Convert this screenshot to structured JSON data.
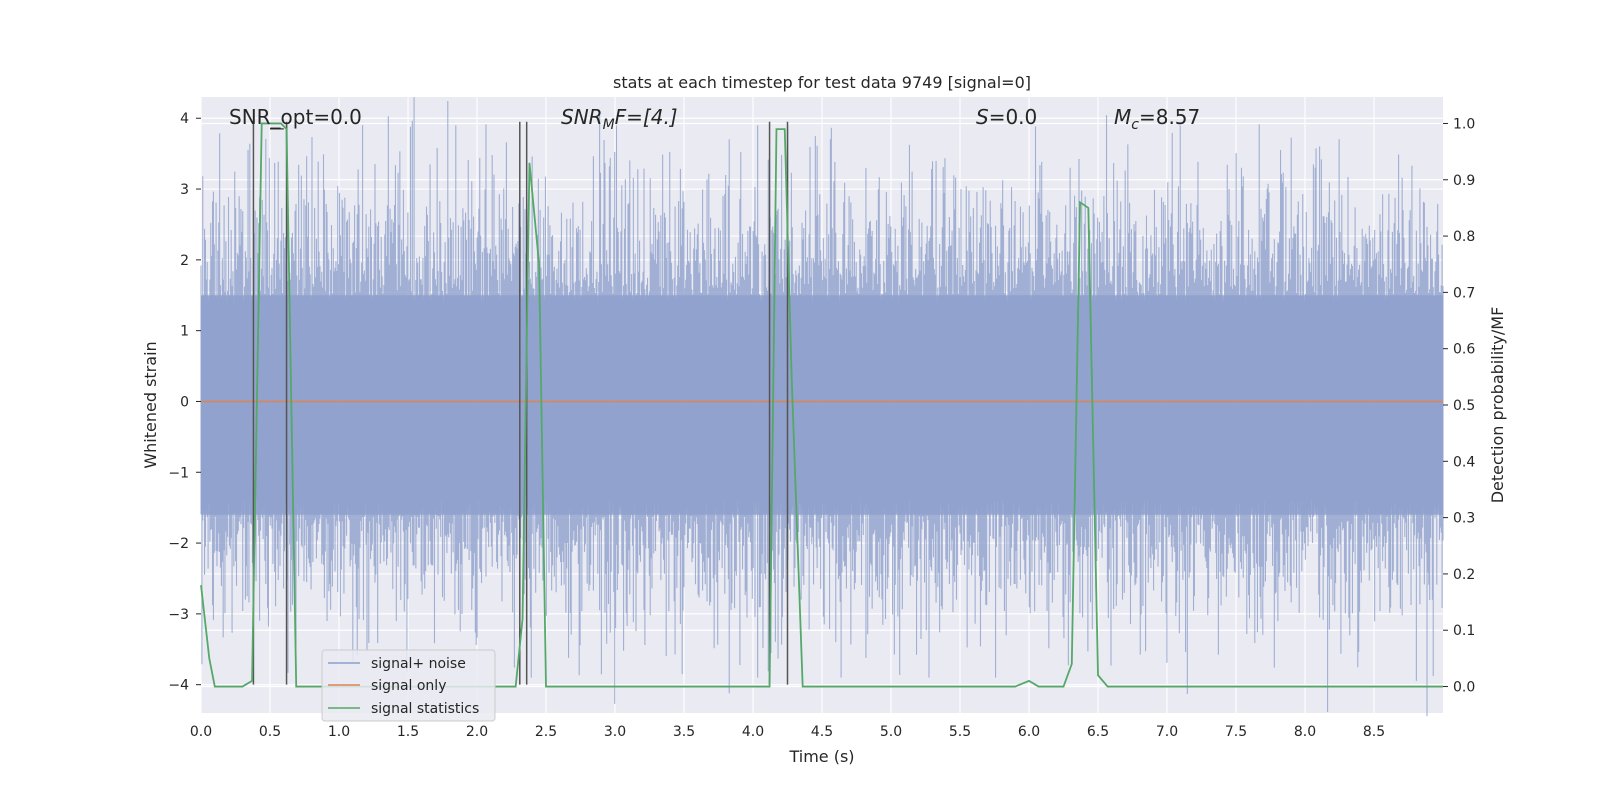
{
  "chart_data": {
    "type": "line",
    "title": "stats at each timestep for test data 9749 [signal=0]",
    "xlabel": "Time (s)",
    "ylabel": "Whitened strain",
    "y2label": "Detection probability/MF",
    "xlim": [
      0.0,
      9.0
    ],
    "ylim": [
      -4.4,
      4.3
    ],
    "y2lim": [
      -0.047,
      1.047
    ],
    "xticks": [
      "0.0",
      "0.5",
      "1.0",
      "1.5",
      "2.0",
      "2.5",
      "3.0",
      "3.5",
      "4.0",
      "4.5",
      "5.0",
      "5.5",
      "6.0",
      "6.5",
      "7.0",
      "7.5",
      "8.0",
      "8.5"
    ],
    "yticks": [
      "4",
      "3",
      "2",
      "1",
      "0",
      "−1",
      "−2",
      "−3",
      "−4"
    ],
    "y2ticks": [
      "1.0",
      "0.9",
      "0.8",
      "0.7",
      "0.6",
      "0.5",
      "0.4",
      "0.3",
      "0.2",
      "0.1",
      "0.0"
    ],
    "grid": true,
    "legend_position": "lower left",
    "annotations": {
      "snr_opt": "SNR_opt=0.0",
      "snr_mf_main": "SNR",
      "snr_mf_sub": "M",
      "snr_mf_rest": "F=[4.]",
      "s_main": "S",
      "s_rest": "=0.0",
      "mc_main": "M",
      "mc_sub": "c",
      "mc_rest": "=8.57"
    },
    "series": [
      {
        "name": "signal+ noise",
        "color": "#8da0cb",
        "note_amplitude": "whitened noise roughly within ±2.5, peaks up to ~3.9 and down to ~-3.9",
        "envelope": [
          1.5,
          -1.6
        ]
      },
      {
        "name": "signal only",
        "color": "#dd8452",
        "values_constant": 0.0
      },
      {
        "name": "signal statistics",
        "color": "#55a868",
        "axis": "right",
        "x": [
          0.0,
          0.06,
          0.1,
          0.3,
          0.37,
          0.44,
          0.58,
          0.62,
          0.69,
          0.75,
          2.2,
          2.28,
          2.33,
          2.38,
          2.45,
          2.5,
          4.08,
          4.12,
          4.17,
          4.23,
          4.28,
          4.36,
          4.42,
          5.85,
          5.9,
          6.0,
          6.07,
          6.25,
          6.31,
          6.37,
          6.43,
          6.5,
          6.57,
          6.62,
          9.0
        ],
        "y": [
          0.18,
          0.05,
          0.0,
          0.0,
          0.01,
          1.0,
          1.0,
          0.99,
          0.0,
          0.0,
          0.0,
          0.0,
          0.12,
          0.93,
          0.75,
          0.0,
          0.0,
          0.0,
          0.99,
          0.99,
          0.55,
          0.0,
          0.0,
          0.0,
          0.0,
          0.01,
          0.0,
          0.0,
          0.04,
          0.86,
          0.85,
          0.02,
          0.0,
          0.0,
          0.0
        ]
      }
    ],
    "vlines_dark": [
      {
        "x": 0.38,
        "y": [
          -4.0,
          3.95
        ]
      },
      {
        "x": 0.62,
        "y": [
          -4.0,
          3.95
        ]
      },
      {
        "x": 2.31,
        "y": [
          -4.0,
          3.95
        ]
      },
      {
        "x": 2.36,
        "y": [
          -4.0,
          3.95
        ]
      },
      {
        "x": 4.12,
        "y": [
          -4.0,
          3.95
        ]
      },
      {
        "x": 4.25,
        "y": [
          -4.0,
          3.95
        ]
      }
    ],
    "hline_short": {
      "x": [
        0.5,
        0.6
      ],
      "y": 3.85
    }
  }
}
